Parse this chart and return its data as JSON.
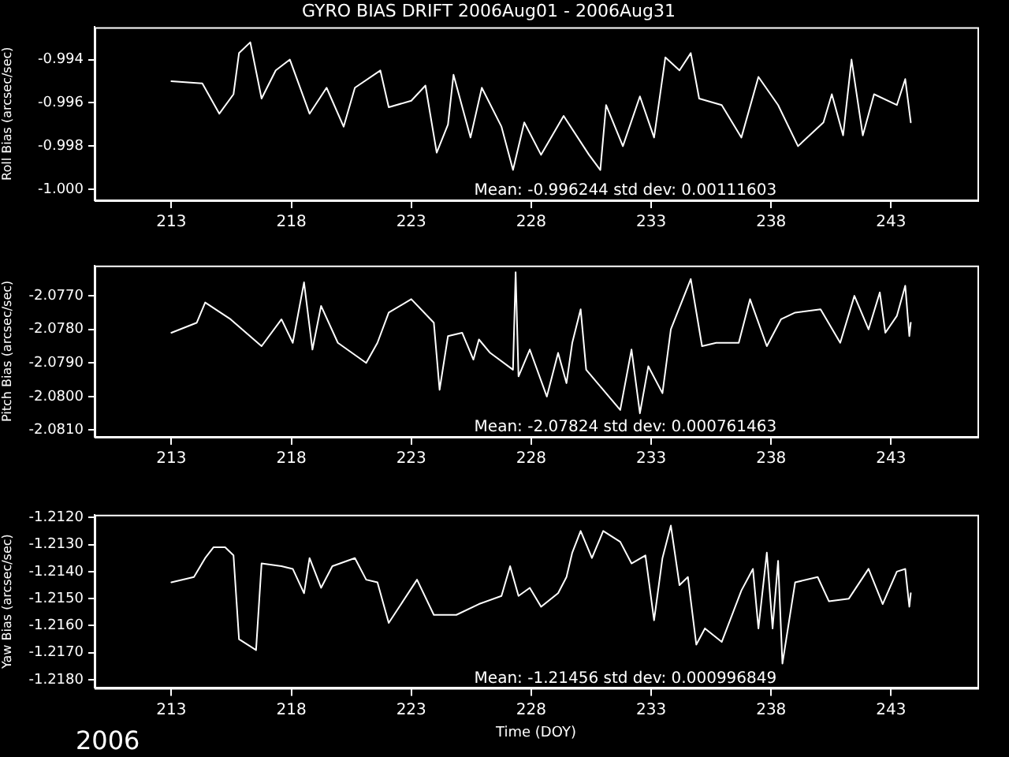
{
  "chart_data": [
    {
      "type": "line",
      "title": "GYRO BIAS DRIFT 2006Aug01 - 2006Aug31",
      "ylabel": "Roll Bias (arcsec/sec)",
      "color": "#ffffff",
      "grid": false,
      "legend": false,
      "xlim": [
        209.8,
        246.6
      ],
      "xticks": [
        213,
        218,
        223,
        228,
        233,
        238,
        243
      ],
      "ylim": [
        -1.0005,
        -0.9925
      ],
      "yticks": [
        -0.994,
        -0.996,
        -0.998,
        {
          "value": -1.0,
          "label": "-1.000"
        }
      ],
      "annotations": [
        "Mean: -0.996244 std dev: 0.00111603"
      ],
      "x": [
        213.0,
        214.29,
        215.0,
        215.59,
        215.82,
        216.29,
        216.76,
        217.35,
        217.94,
        218.76,
        219.47,
        220.18,
        220.65,
        221.71,
        222.06,
        223.0,
        223.59,
        224.06,
        224.53,
        224.76,
        225.47,
        225.94,
        226.76,
        227.24,
        227.71,
        228.41,
        229.35,
        230.41,
        230.88,
        231.12,
        231.82,
        232.53,
        233.12,
        233.59,
        234.18,
        234.65,
        235.0,
        235.94,
        236.76,
        237.47,
        238.29,
        239.12,
        240.18,
        240.53,
        241.0,
        241.35,
        241.82,
        242.29,
        243.24,
        243.59,
        243.82
      ],
      "values": [
        -0.995,
        -0.9951,
        -0.9965,
        -0.9956,
        -0.9937,
        -0.9932,
        -0.9958,
        -0.9945,
        -0.994,
        -0.9965,
        -0.9953,
        -0.9971,
        -0.9953,
        -0.9945,
        -0.9962,
        -0.9959,
        -0.9952,
        -0.9983,
        -0.997,
        -0.9947,
        -0.9976,
        -0.9953,
        -0.9971,
        -0.9991,
        -0.9969,
        -0.9984,
        -0.9966,
        -0.9984,
        -0.9991,
        -0.9961,
        -0.998,
        -0.9957,
        -0.9976,
        -0.9939,
        -0.9945,
        -0.9937,
        -0.9958,
        -0.9961,
        -0.9976,
        -0.9948,
        -0.9961,
        -0.998,
        -0.9969,
        -0.9956,
        -0.9975,
        -0.994,
        -0.9975,
        -0.9956,
        -0.9961,
        -0.9949,
        -0.9969
      ]
    },
    {
      "type": "line",
      "ylabel": "Pitch Bias (arcsec/sec)",
      "color": "#ffffff",
      "grid": false,
      "legend": false,
      "xlim": [
        209.8,
        246.6
      ],
      "xticks": [
        213,
        218,
        223,
        228,
        233,
        238,
        243
      ],
      "ylim": [
        -2.0812,
        -2.0761
      ],
      "yticks": [
        {
          "value": -2.077,
          "label": "-2.0770"
        },
        {
          "value": -2.078,
          "label": "-2.0780"
        },
        {
          "value": -2.079,
          "label": "-2.0790"
        },
        {
          "value": -2.08,
          "label": "-2.0800"
        },
        {
          "value": -2.081,
          "label": "-2.0810"
        }
      ],
      "annotations": [
        "Mean: -2.07824 std dev: 0.000761463"
      ],
      "x": [
        213.0,
        214.06,
        214.41,
        215.47,
        216.76,
        217.59,
        218.06,
        218.53,
        218.88,
        219.24,
        219.94,
        221.12,
        221.59,
        222.06,
        223.0,
        223.94,
        224.18,
        224.53,
        225.12,
        225.59,
        225.82,
        226.29,
        227.24,
        227.35,
        227.47,
        227.94,
        228.65,
        229.12,
        229.47,
        229.71,
        230.06,
        230.29,
        231.0,
        231.71,
        232.18,
        232.53,
        232.88,
        233.47,
        233.82,
        234.65,
        235.12,
        235.71,
        236.65,
        237.12,
        237.82,
        238.41,
        239.0,
        240.06,
        240.88,
        241.47,
        242.06,
        242.53,
        242.76,
        243.24,
        243.59,
        243.76,
        243.82
      ],
      "values": [
        -2.0781,
        -2.0778,
        -2.0772,
        -2.0777,
        -2.0785,
        -2.0777,
        -2.0784,
        -2.0766,
        -2.0786,
        -2.0773,
        -2.0784,
        -2.079,
        -2.0784,
        -2.0775,
        -2.0771,
        -2.0778,
        -2.0798,
        -2.0782,
        -2.0781,
        -2.0789,
        -2.0783,
        -2.0787,
        -2.0792,
        -2.0763,
        -2.0794,
        -2.0786,
        -2.08,
        -2.0787,
        -2.0796,
        -2.0784,
        -2.0774,
        -2.0792,
        -2.0798,
        -2.0804,
        -2.0786,
        -2.0805,
        -2.0791,
        -2.0799,
        -2.078,
        -2.0765,
        -2.0785,
        -2.0784,
        -2.0784,
        -2.0771,
        -2.0785,
        -2.0777,
        -2.0775,
        -2.0774,
        -2.0784,
        -2.077,
        -2.078,
        -2.0769,
        -2.0781,
        -2.0776,
        -2.0767,
        -2.0782,
        -2.0778
      ]
    },
    {
      "type": "line",
      "ylabel": "Yaw Bias (arcsec/sec)",
      "xlabel": "Time (DOY)",
      "color": "#ffffff",
      "grid": false,
      "legend": false,
      "xlim": [
        209.8,
        246.6
      ],
      "xticks": [
        213,
        218,
        223,
        228,
        233,
        238,
        243
      ],
      "ylim": [
        -1.2183,
        -1.2119
      ],
      "yticks": [
        {
          "value": -1.212,
          "label": "-1.2120"
        },
        {
          "value": -1.213,
          "label": "-1.2130"
        },
        {
          "value": -1.214,
          "label": "-1.2140"
        },
        {
          "value": -1.215,
          "label": "-1.2150"
        },
        {
          "value": -1.216,
          "label": "-1.2160"
        },
        {
          "value": -1.217,
          "label": "-1.2170"
        },
        {
          "value": -1.218,
          "label": "-1.2180"
        }
      ],
      "annotations": [
        "Mean: -1.21456 std dev: 0.000996849",
        "2006"
      ],
      "x": [
        213.0,
        213.94,
        214.41,
        214.76,
        215.24,
        215.59,
        215.82,
        216.53,
        216.76,
        217.59,
        218.06,
        218.53,
        218.76,
        219.24,
        219.71,
        220.65,
        221.12,
        221.59,
        222.06,
        223.24,
        223.94,
        224.88,
        225.82,
        226.76,
        227.12,
        227.47,
        227.94,
        228.41,
        229.12,
        229.47,
        229.71,
        230.06,
        230.53,
        231.0,
        231.71,
        232.18,
        232.76,
        233.12,
        233.47,
        233.82,
        234.18,
        234.53,
        234.88,
        235.24,
        235.94,
        236.76,
        237.24,
        237.47,
        237.82,
        238.06,
        238.29,
        238.47,
        239.0,
        239.94,
        240.41,
        241.24,
        242.06,
        242.65,
        243.24,
        243.59,
        243.76,
        243.82
      ],
      "values": [
        -1.2144,
        -1.2142,
        -1.2135,
        -1.2131,
        -1.2131,
        -1.2134,
        -1.2165,
        -1.2169,
        -1.2137,
        -1.2138,
        -1.2139,
        -1.2148,
        -1.2135,
        -1.2146,
        -1.2138,
        -1.2135,
        -1.2143,
        -1.2144,
        -1.2159,
        -1.2143,
        -1.2156,
        -1.2156,
        -1.2152,
        -1.2149,
        -1.2138,
        -1.2149,
        -1.2146,
        -1.2153,
        -1.2148,
        -1.2142,
        -1.2133,
        -1.2125,
        -1.2135,
        -1.2125,
        -1.2129,
        -1.2137,
        -1.2134,
        -1.2158,
        -1.2135,
        -1.2123,
        -1.2145,
        -1.2142,
        -1.2167,
        -1.2161,
        -1.2166,
        -1.2147,
        -1.2139,
        -1.2161,
        -1.2133,
        -1.2161,
        -1.2136,
        -1.2174,
        -1.2144,
        -1.2142,
        -1.2151,
        -1.215,
        -1.2139,
        -1.2152,
        -1.214,
        -1.2139,
        -1.2153,
        -1.2148
      ]
    }
  ]
}
